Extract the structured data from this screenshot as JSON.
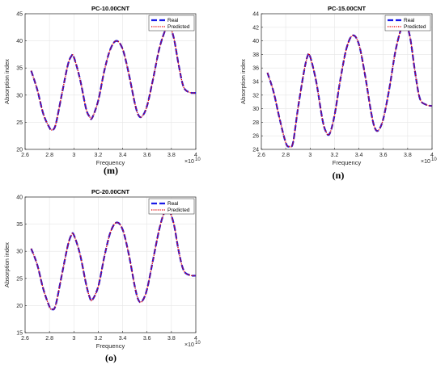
{
  "colors": {
    "real": "#1a1ae6",
    "predicted": "#e00000",
    "grid": "#e6e6e6",
    "axis": "#262626"
  },
  "chart_data": [
    {
      "type": "line",
      "title": "PC-10.00CNT",
      "subfigure_label": "(m)",
      "xlabel": "Frequency",
      "ylabel": "Absorption index",
      "x_exponent": "×10",
      "x_exponent_power": "10",
      "xlim": [
        2.6,
        4.0
      ],
      "ylim": [
        20,
        45
      ],
      "xticks": [
        2.6,
        2.8,
        3.0,
        3.2,
        3.4,
        3.6,
        3.8,
        4.0
      ],
      "xtick_labels": [
        "2.6",
        "2.8",
        "3",
        "3.2",
        "3.4",
        "3.6",
        "3.8",
        "4"
      ],
      "yticks": [
        20,
        25,
        30,
        35,
        40,
        45
      ],
      "ytick_labels": [
        "20",
        "25",
        "30",
        "35",
        "40",
        "45"
      ],
      "grid": true,
      "legend_position": "top-right",
      "x": [
        2.65,
        2.7,
        2.75,
        2.8,
        2.82,
        2.85,
        2.9,
        2.95,
        2.98,
        3.0,
        3.05,
        3.1,
        3.13,
        3.15,
        3.2,
        3.25,
        3.3,
        3.35,
        3.4,
        3.45,
        3.5,
        3.53,
        3.56,
        3.6,
        3.65,
        3.7,
        3.75,
        3.78,
        3.82,
        3.86,
        3.9,
        3.95,
        4.0
      ],
      "series": [
        {
          "name": "Real",
          "values": [
            34.5,
            31.0,
            26.5,
            24.0,
            23.6,
            24.5,
            30.0,
            35.5,
            37.2,
            37.0,
            33.0,
            27.5,
            26.0,
            25.8,
            29.0,
            34.5,
            38.5,
            40.0,
            38.5,
            34.0,
            28.5,
            26.3,
            26.1,
            28.0,
            33.0,
            38.5,
            42.0,
            43.0,
            40.5,
            35.5,
            31.5,
            30.5,
            30.4
          ]
        },
        {
          "name": "Predicted",
          "values": [
            34.5,
            31.0,
            26.5,
            24.0,
            23.6,
            24.5,
            30.0,
            35.5,
            37.2,
            37.0,
            33.0,
            27.5,
            26.0,
            25.8,
            29.0,
            34.5,
            38.5,
            40.0,
            38.5,
            34.0,
            28.5,
            26.3,
            26.1,
            28.0,
            33.0,
            38.5,
            42.0,
            43.0,
            40.5,
            35.5,
            31.5,
            30.5,
            30.4
          ]
        }
      ]
    },
    {
      "type": "line",
      "title": "PC-15.00CNT",
      "subfigure_label": "(n)",
      "xlabel": "Frequency",
      "ylabel": "Absorption index",
      "x_exponent": "×10",
      "x_exponent_power": "10",
      "xlim": [
        2.6,
        4.0
      ],
      "ylim": [
        24,
        44
      ],
      "xticks": [
        2.6,
        2.8,
        3.0,
        3.2,
        3.4,
        3.6,
        3.8,
        4.0
      ],
      "xtick_labels": [
        "2.6",
        "2.8",
        "3",
        "3.2",
        "3.4",
        "3.6",
        "3.8",
        "4"
      ],
      "yticks": [
        24,
        26,
        28,
        30,
        32,
        34,
        36,
        38,
        40,
        42,
        44
      ],
      "ytick_labels": [
        "24",
        "26",
        "28",
        "30",
        "32",
        "34",
        "36",
        "38",
        "40",
        "42",
        "44"
      ],
      "grid": true,
      "legend_position": "top-right",
      "x": [
        2.65,
        2.7,
        2.75,
        2.8,
        2.83,
        2.86,
        2.9,
        2.95,
        2.98,
        3.0,
        3.05,
        3.1,
        3.13,
        3.16,
        3.2,
        3.25,
        3.3,
        3.35,
        3.4,
        3.45,
        3.5,
        3.53,
        3.56,
        3.6,
        3.65,
        3.7,
        3.75,
        3.78,
        3.82,
        3.86,
        3.9,
        3.95,
        4.0
      ],
      "series": [
        {
          "name": "Real",
          "values": [
            35.3,
            32.5,
            28.5,
            25.0,
            24.4,
            25.0,
            30.0,
            35.5,
            37.8,
            37.7,
            34.0,
            28.5,
            26.6,
            26.3,
            29.0,
            34.5,
            39.0,
            40.8,
            39.5,
            35.0,
            29.5,
            27.2,
            26.8,
            28.5,
            33.0,
            38.5,
            42.0,
            42.8,
            40.5,
            35.5,
            31.5,
            30.6,
            30.4
          ]
        },
        {
          "name": "Predicted",
          "values": [
            35.3,
            32.5,
            28.5,
            25.0,
            24.4,
            25.0,
            30.0,
            35.5,
            37.8,
            37.7,
            34.0,
            28.5,
            26.6,
            26.3,
            29.0,
            34.5,
            39.0,
            40.8,
            39.5,
            35.0,
            29.5,
            27.2,
            26.8,
            28.5,
            33.0,
            38.5,
            42.0,
            42.8,
            40.5,
            35.5,
            31.5,
            30.6,
            30.4
          ]
        }
      ]
    },
    {
      "type": "line",
      "title": "PC-20.00CNT",
      "subfigure_label": "(o)",
      "xlabel": "Frequency",
      "ylabel": "Absorption index",
      "x_exponent": "×10",
      "x_exponent_power": "10",
      "xlim": [
        2.6,
        4.0
      ],
      "ylim": [
        15,
        40
      ],
      "xticks": [
        2.6,
        2.8,
        3.0,
        3.2,
        3.4,
        3.6,
        3.8,
        4.0
      ],
      "xtick_labels": [
        "2.6",
        "2.8",
        "3",
        "3.2",
        "3.4",
        "3.6",
        "3.8",
        "4"
      ],
      "yticks": [
        15,
        20,
        25,
        30,
        35,
        40
      ],
      "ytick_labels": [
        "15",
        "20",
        "25",
        "30",
        "35",
        "40"
      ],
      "grid": true,
      "legend_position": "top-right",
      "x": [
        2.65,
        2.7,
        2.75,
        2.8,
        2.82,
        2.85,
        2.9,
        2.95,
        2.98,
        3.0,
        3.05,
        3.1,
        3.13,
        3.15,
        3.2,
        3.25,
        3.3,
        3.35,
        3.4,
        3.45,
        3.5,
        3.53,
        3.56,
        3.6,
        3.65,
        3.7,
        3.74,
        3.78,
        3.82,
        3.86,
        3.9,
        3.95,
        4.0
      ],
      "series": [
        {
          "name": "Real",
          "values": [
            30.5,
            27.5,
            23.0,
            19.8,
            19.3,
            20.0,
            25.5,
            31.0,
            33.0,
            33.0,
            29.5,
            24.0,
            21.5,
            21.0,
            23.5,
            29.0,
            33.5,
            35.3,
            34.0,
            29.5,
            23.5,
            21.0,
            20.8,
            23.0,
            28.5,
            34.0,
            37.0,
            37.5,
            35.0,
            30.0,
            26.5,
            25.6,
            25.5
          ]
        },
        {
          "name": "Predicted",
          "values": [
            30.5,
            27.5,
            23.0,
            19.8,
            19.3,
            20.0,
            25.5,
            31.0,
            33.0,
            33.0,
            29.5,
            24.0,
            21.5,
            21.0,
            23.5,
            29.0,
            33.5,
            35.3,
            34.0,
            29.5,
            23.5,
            21.0,
            20.8,
            23.0,
            28.5,
            34.0,
            37.0,
            37.5,
            35.0,
            30.0,
            26.5,
            25.6,
            25.5
          ]
        }
      ]
    }
  ]
}
